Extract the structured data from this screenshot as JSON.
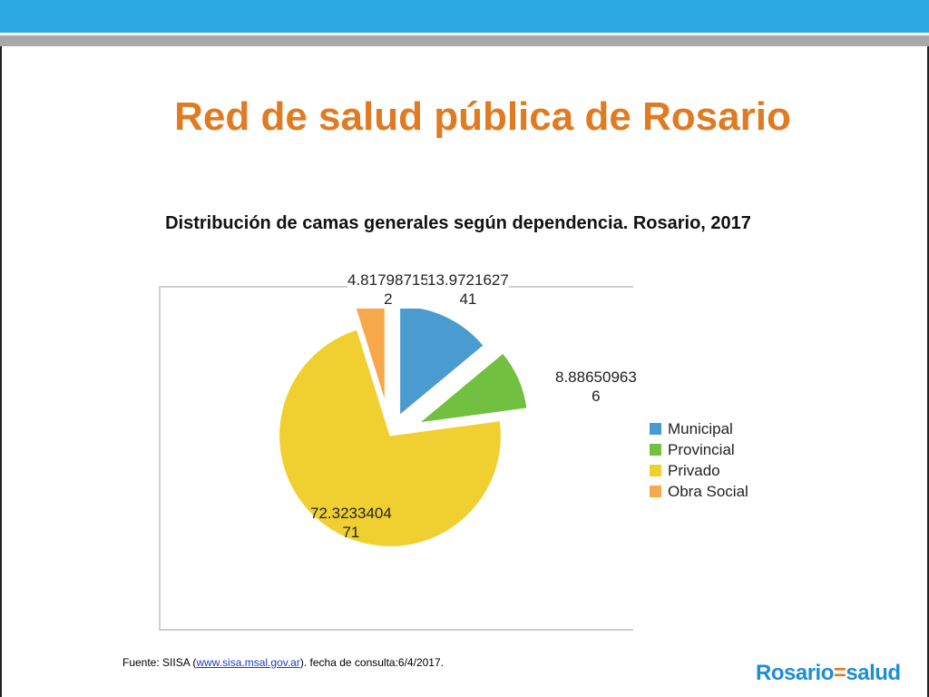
{
  "slide": {
    "title": "Red de salud pública de Rosario"
  },
  "chart_data": {
    "type": "pie",
    "title": "Distribución de camas generales según dependencia. Rosario, 2017",
    "exploded": true,
    "legend_position": "right",
    "slices": [
      {
        "name": "Municipal",
        "value": 13.972162741,
        "label_line1": "13.9721627",
        "label_line2": "41",
        "color": "#4a9bd0"
      },
      {
        "name": "Provincial",
        "value": 8.886509636,
        "label_line1": "8.88650963",
        "label_line2": "6",
        "color": "#72c040"
      },
      {
        "name": "Privado",
        "value": 72.323340471,
        "label_line1": "72.3233404",
        "label_line2": "71",
        "color": "#f0d030"
      },
      {
        "name": "Obra Social",
        "value": 4.817987152,
        "label_line1": "4.81798715",
        "label_line2": "2",
        "color": "#f6a84a"
      }
    ]
  },
  "footer": {
    "source_prefix": "Fuente: SIISA (",
    "source_link": "www.sisa.msal.gov.ar",
    "source_suffix": "). fecha de consulta:6/4/2017.",
    "logo_part1": "Rosario",
    "logo_part2": "=",
    "logo_part3": "salud"
  }
}
